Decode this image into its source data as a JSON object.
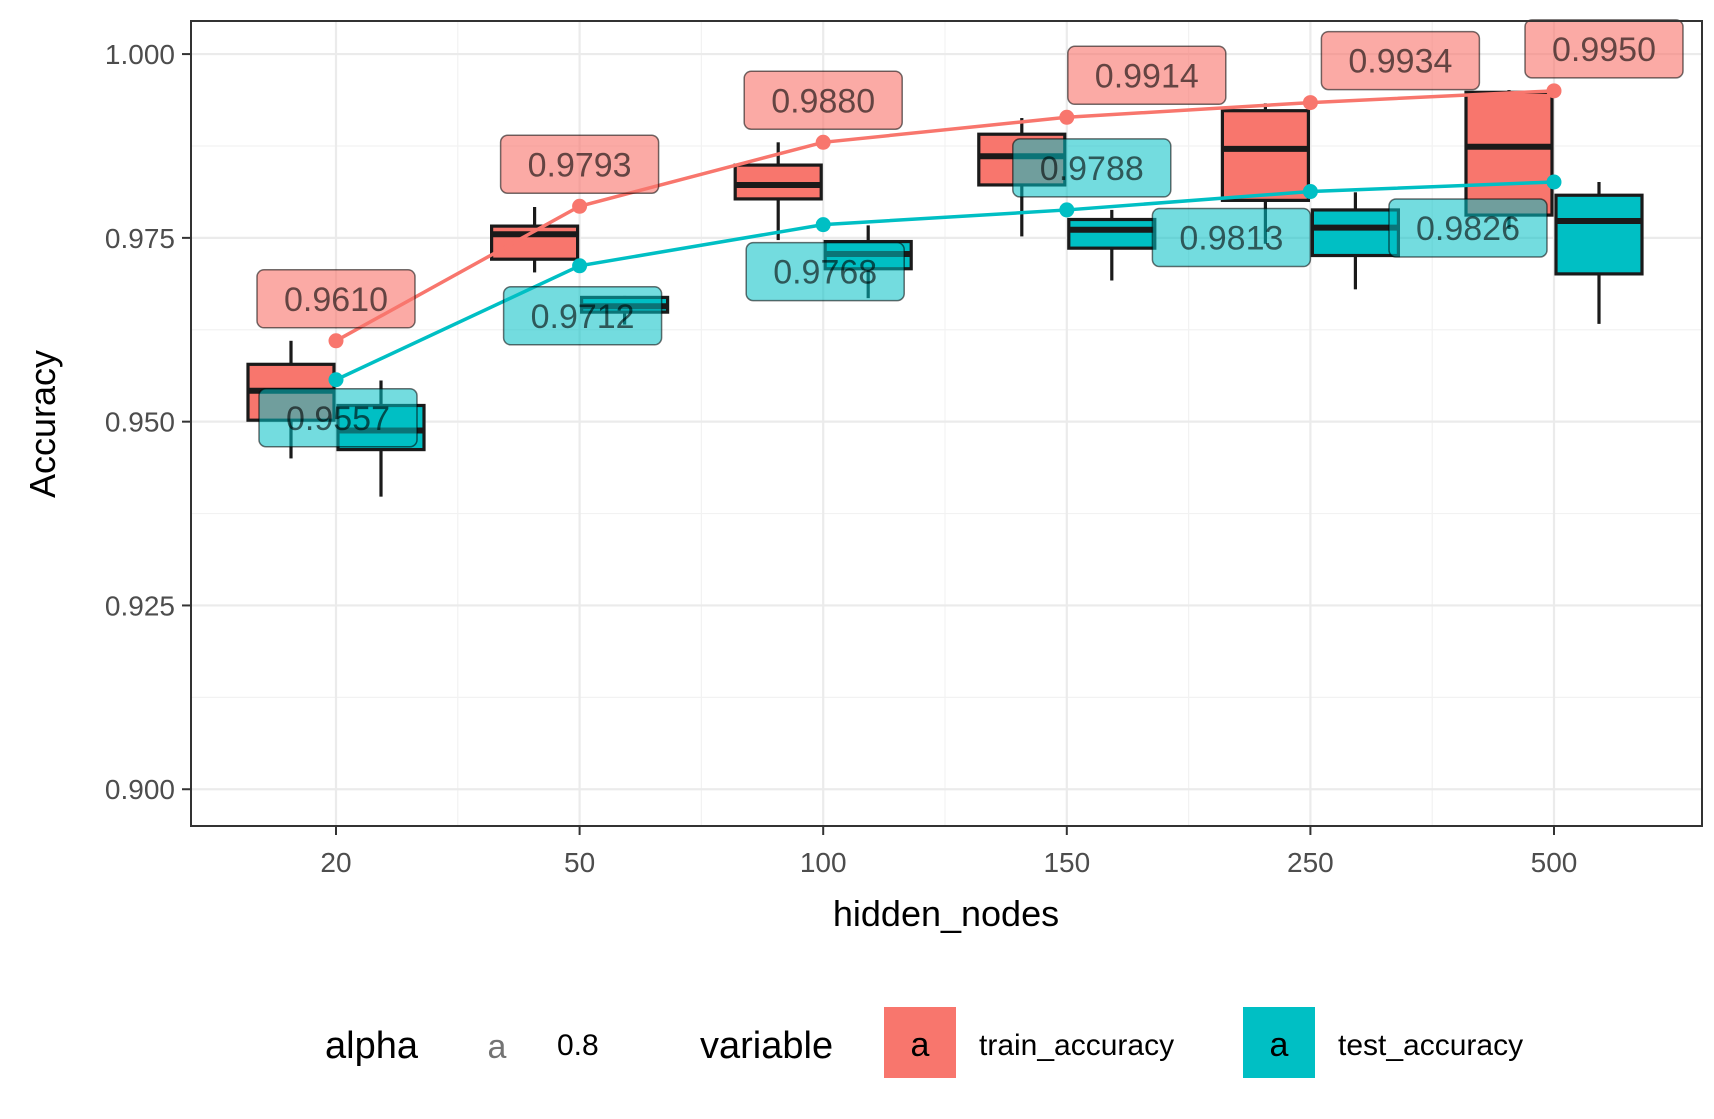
{
  "chart_data": {
    "type": "box",
    "xlabel": "hidden_nodes",
    "ylabel": "Accuracy",
    "categories": [
      "20",
      "50",
      "100",
      "150",
      "250",
      "500"
    ],
    "ylim": [
      0.895,
      1.0045
    ],
    "yticks": [
      0.9,
      0.925,
      0.95,
      0.975,
      1.0
    ],
    "ytick_labels": [
      "0.900",
      "0.925",
      "0.950",
      "0.975",
      "1.000"
    ],
    "grid": true,
    "legend_position": "bottom",
    "alpha_legend": {
      "title": "alpha",
      "key": "a",
      "label": "0.8"
    },
    "variable_legend_title": "variable",
    "legend_key_glyph": "a",
    "series": [
      {
        "name": "train_accuracy",
        "color": "#F8766D",
        "boxes": [
          {
            "min": 0.945,
            "q1": 0.9502,
            "median": 0.9542,
            "q3": 0.9578,
            "max": 0.961
          },
          {
            "min": 0.9703,
            "q1": 0.9721,
            "median": 0.9755,
            "q3": 0.9766,
            "max": 0.9792
          },
          {
            "min": 0.9747,
            "q1": 0.9803,
            "median": 0.9822,
            "q3": 0.9849,
            "max": 0.988
          },
          {
            "min": 0.9752,
            "q1": 0.9822,
            "median": 0.9861,
            "q3": 0.9891,
            "max": 0.9913
          },
          {
            "min": 0.9742,
            "q1": 0.9801,
            "median": 0.9871,
            "q3": 0.9923,
            "max": 0.9933
          },
          {
            "min": 0.9762,
            "q1": 0.9781,
            "median": 0.9874,
            "q3": 0.9948,
            "max": 0.9951
          }
        ],
        "line_values": [
          0.961,
          0.9793,
          0.988,
          0.9914,
          0.9934,
          0.995
        ],
        "labels": [
          "0.9610",
          "0.9793",
          "0.9880",
          "0.9914",
          "0.9934",
          "0.9950"
        ]
      },
      {
        "name": "test_accuracy",
        "color": "#00BFC4",
        "boxes": [
          {
            "min": 0.9398,
            "q1": 0.9462,
            "median": 0.9488,
            "q3": 0.9522,
            "max": 0.9556
          },
          {
            "min": 0.9632,
            "q1": 0.9649,
            "median": 0.9657,
            "q3": 0.9669,
            "max": 0.9671
          },
          {
            "min": 0.9668,
            "q1": 0.9708,
            "median": 0.9728,
            "q3": 0.9745,
            "max": 0.9767
          },
          {
            "min": 0.9692,
            "q1": 0.9736,
            "median": 0.9761,
            "q3": 0.9775,
            "max": 0.9788
          },
          {
            "min": 0.968,
            "q1": 0.9726,
            "median": 0.9764,
            "q3": 0.9788,
            "max": 0.9812
          },
          {
            "min": 0.9633,
            "q1": 0.9701,
            "median": 0.9773,
            "q3": 0.9808,
            "max": 0.9826
          }
        ],
        "line_values": [
          0.9557,
          0.9712,
          0.9768,
          0.9788,
          0.9813,
          0.9826
        ],
        "labels": [
          "0.9557",
          "0.9712",
          "0.9768",
          "0.9788",
          "0.9813",
          "0.9826"
        ]
      }
    ]
  }
}
